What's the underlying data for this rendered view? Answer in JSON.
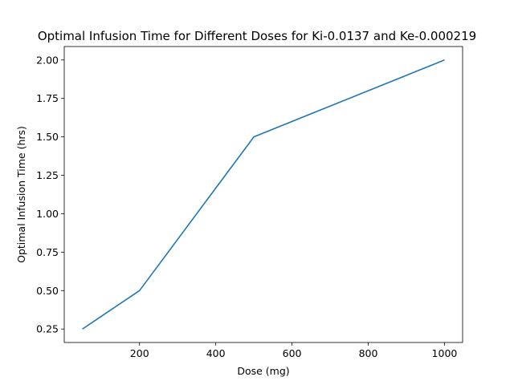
{
  "chart_data": {
    "type": "line",
    "title": "Optimal Infusion Time for Different Doses for Ki-0.0137 and Ke-0.000219",
    "xlabel": "Dose (mg)",
    "ylabel": "Optimal Infusion Time (hrs)",
    "xlim": [
      2.5,
      1047.5
    ],
    "ylim": [
      0.1625,
      2.0875
    ],
    "xticks": [
      200,
      400,
      600,
      800,
      1000
    ],
    "xtick_labels": [
      "200",
      "400",
      "600",
      "800",
      "1000"
    ],
    "yticks": [
      0.25,
      0.5,
      0.75,
      1.0,
      1.25,
      1.5,
      1.75,
      2.0
    ],
    "ytick_labels": [
      "0.25",
      "0.50",
      "0.75",
      "1.00",
      "1.25",
      "1.50",
      "1.75",
      "2.00"
    ],
    "grid": false,
    "series": [
      {
        "color": "#1f77b4",
        "x": [
          50,
          200,
          500,
          1000
        ],
        "y": [
          0.25,
          0.5,
          1.5,
          2.0
        ]
      }
    ]
  }
}
